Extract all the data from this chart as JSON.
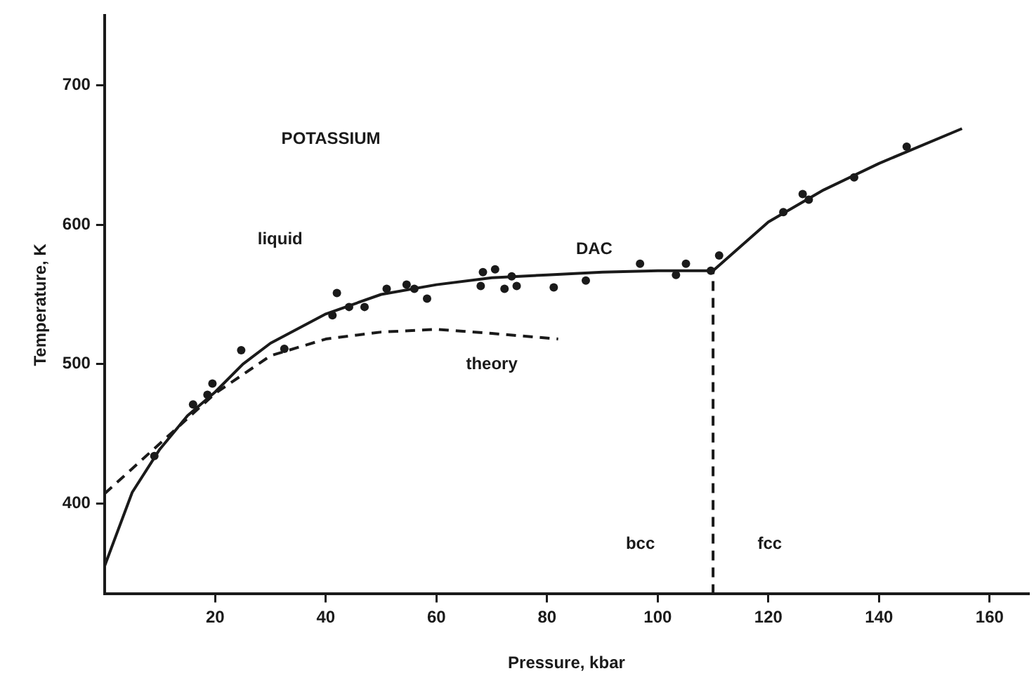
{
  "chart_data": {
    "type": "scatter",
    "xlabel": "Pressure, kbar",
    "ylabel": "Temperature, K",
    "xlim": [
      0,
      167
    ],
    "ylim": [
      335,
      750
    ],
    "xticks": [
      20,
      40,
      60,
      80,
      100,
      120,
      140,
      160
    ],
    "yticks": [
      400,
      500,
      600,
      700
    ],
    "series": [
      {
        "type": "line",
        "color": "#1a1a1a",
        "line_style": "solid",
        "marker": "none",
        "x": [
          0,
          5,
          10,
          15,
          20,
          25,
          30,
          40,
          50,
          60,
          70,
          80,
          90,
          100,
          110,
          120,
          130,
          140,
          155
        ],
        "values": [
          355,
          408,
          439,
          463,
          480,
          500,
          515,
          536,
          550,
          557,
          562,
          564,
          566,
          567,
          567,
          602,
          625,
          644,
          669
        ]
      },
      {
        "type": "line",
        "name": "theory",
        "color": "#1a1a1a",
        "line_style": "dashed",
        "marker": "none",
        "x": [
          0,
          10,
          20,
          30,
          40,
          50,
          60,
          70,
          82
        ],
        "values": [
          407,
          443,
          479,
          506,
          518,
          523,
          525,
          522,
          518
        ]
      },
      {
        "type": "line",
        "color": "#1a1a1a",
        "line_style": "dashed",
        "marker": "none",
        "x": [
          110,
          110
        ],
        "values": [
          335,
          567
        ]
      },
      {
        "color": "#1a1a1a",
        "marker": "circle",
        "x": [
          9,
          16,
          18.6,
          19.5,
          24.7,
          32.5,
          41.2,
          42,
          44.2,
          47,
          51,
          54.6,
          56,
          58.3,
          68,
          68.4,
          70.6,
          72.3,
          73.6,
          74.5,
          81.2,
          87,
          96.8,
          103.3,
          105.1,
          109.6,
          111.1,
          122.7,
          126.2,
          127.3,
          135.5,
          145
        ],
        "values": [
          434,
          471,
          478,
          486,
          510,
          511,
          535,
          551,
          541,
          541,
          554,
          557,
          554,
          547,
          556,
          566,
          568,
          554,
          563,
          556,
          555,
          560,
          572,
          564,
          572,
          567,
          578,
          609,
          622,
          618,
          634,
          656
        ]
      }
    ],
    "annotations": [
      "POTASSIUM",
      "liquid",
      "DAC",
      "bcc",
      "fcc"
    ]
  }
}
